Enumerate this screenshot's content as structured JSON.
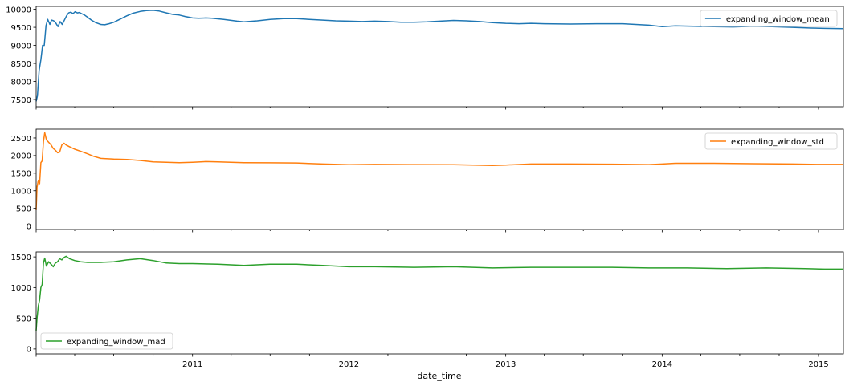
{
  "chart_data": [
    {
      "type": "line",
      "title": "",
      "xlabel": "",
      "ylabel": "",
      "ylim": [
        7300,
        10080
      ],
      "y_ticks": [
        7500,
        8000,
        8500,
        9000,
        9500,
        10000
      ],
      "legend_position": "upper-right",
      "grid": false,
      "series": [
        {
          "name": "expanding_window_mean",
          "color": "#1f77b4",
          "points": [
            [
              "2010-01-01",
              7450
            ],
            [
              "2010-01-04",
              7600
            ],
            [
              "2010-01-08",
              8300
            ],
            [
              "2010-01-12",
              8600
            ],
            [
              "2010-01-16",
              9000
            ],
            [
              "2010-01-20",
              9000
            ],
            [
              "2010-01-24",
              9550
            ],
            [
              "2010-01-28",
              9720
            ],
            [
              "2010-02-02",
              9580
            ],
            [
              "2010-02-06",
              9700
            ],
            [
              "2010-02-11",
              9680
            ],
            [
              "2010-02-16",
              9620
            ],
            [
              "2010-02-21",
              9520
            ],
            [
              "2010-02-26",
              9660
            ],
            [
              "2010-03-03",
              9580
            ],
            [
              "2010-03-08",
              9700
            ],
            [
              "2010-03-13",
              9820
            ],
            [
              "2010-03-18",
              9900
            ],
            [
              "2010-03-23",
              9920
            ],
            [
              "2010-03-28",
              9880
            ],
            [
              "2010-04-02",
              9930
            ],
            [
              "2010-04-07",
              9900
            ],
            [
              "2010-04-12",
              9910
            ],
            [
              "2010-04-17",
              9880
            ],
            [
              "2010-04-24",
              9840
            ],
            [
              "2010-05-01",
              9780
            ],
            [
              "2010-05-10",
              9700
            ],
            [
              "2010-05-20",
              9630
            ],
            [
              "2010-06-01",
              9580
            ],
            [
              "2010-06-10",
              9570
            ],
            [
              "2010-06-20",
              9600
            ],
            [
              "2010-07-01",
              9640
            ],
            [
              "2010-07-15",
              9720
            ],
            [
              "2010-08-01",
              9820
            ],
            [
              "2010-08-15",
              9890
            ],
            [
              "2010-09-01",
              9940
            ],
            [
              "2010-09-15",
              9965
            ],
            [
              "2010-10-01",
              9970
            ],
            [
              "2010-10-15",
              9950
            ],
            [
              "2010-11-01",
              9900
            ],
            [
              "2010-11-15",
              9860
            ],
            [
              "2010-12-01",
              9840
            ],
            [
              "2010-12-15",
              9800
            ],
            [
              "2011-01-01",
              9760
            ],
            [
              "2011-01-15",
              9750
            ],
            [
              "2011-02-01",
              9760
            ],
            [
              "2011-02-15",
              9750
            ],
            [
              "2011-03-15",
              9720
            ],
            [
              "2011-04-15",
              9670
            ],
            [
              "2011-05-01",
              9650
            ],
            [
              "2011-06-01",
              9680
            ],
            [
              "2011-07-01",
              9720
            ],
            [
              "2011-08-01",
              9740
            ],
            [
              "2011-09-01",
              9740
            ],
            [
              "2011-10-01",
              9720
            ],
            [
              "2011-11-01",
              9700
            ],
            [
              "2011-12-01",
              9680
            ],
            [
              "2012-01-01",
              9670
            ],
            [
              "2012-02-01",
              9660
            ],
            [
              "2012-03-01",
              9670
            ],
            [
              "2012-04-01",
              9660
            ],
            [
              "2012-05-01",
              9640
            ],
            [
              "2012-06-01",
              9640
            ],
            [
              "2012-07-01",
              9650
            ],
            [
              "2012-08-01",
              9670
            ],
            [
              "2012-09-01",
              9690
            ],
            [
              "2012-10-01",
              9680
            ],
            [
              "2012-11-01",
              9660
            ],
            [
              "2012-12-01",
              9630
            ],
            [
              "2013-01-01",
              9610
            ],
            [
              "2013-02-01",
              9600
            ],
            [
              "2013-03-01",
              9610
            ],
            [
              "2013-04-01",
              9600
            ],
            [
              "2013-06-01",
              9590
            ],
            [
              "2013-08-01",
              9600
            ],
            [
              "2013-10-01",
              9600
            ],
            [
              "2013-12-01",
              9560
            ],
            [
              "2014-01-01",
              9520
            ],
            [
              "2014-02-01",
              9540
            ],
            [
              "2014-03-15",
              9530
            ],
            [
              "2014-05-01",
              9520
            ],
            [
              "2014-06-15",
              9510
            ],
            [
              "2014-08-01",
              9530
            ],
            [
              "2014-09-15",
              9520
            ],
            [
              "2014-11-01",
              9500
            ],
            [
              "2014-12-15",
              9480
            ],
            [
              "2015-01-15",
              9470
            ],
            [
              "2015-02-28",
              9465
            ]
          ]
        }
      ]
    },
    {
      "type": "line",
      "title": "",
      "xlabel": "",
      "ylabel": "",
      "ylim": [
        -100,
        2750
      ],
      "y_ticks": [
        0,
        500,
        1000,
        1500,
        2000,
        2500
      ],
      "legend_position": "upper-right",
      "grid": false,
      "series": [
        {
          "name": "expanding_window_std",
          "color": "#ff7f0e",
          "points": [
            [
              "2010-01-01",
              450
            ],
            [
              "2010-01-03",
              1100
            ],
            [
              "2010-01-06",
              1300
            ],
            [
              "2010-01-09",
              1200
            ],
            [
              "2010-01-12",
              1800
            ],
            [
              "2010-01-15",
              1850
            ],
            [
              "2010-01-18",
              2400
            ],
            [
              "2010-01-21",
              2650
            ],
            [
              "2010-01-25",
              2450
            ],
            [
              "2010-01-30",
              2380
            ],
            [
              "2010-02-05",
              2300
            ],
            [
              "2010-02-10",
              2200
            ],
            [
              "2010-02-15",
              2150
            ],
            [
              "2010-02-20",
              2080
            ],
            [
              "2010-02-25",
              2100
            ],
            [
              "2010-03-02",
              2300
            ],
            [
              "2010-03-07",
              2350
            ],
            [
              "2010-03-12",
              2300
            ],
            [
              "2010-03-20",
              2250
            ],
            [
              "2010-04-01",
              2180
            ],
            [
              "2010-04-15",
              2120
            ],
            [
              "2010-05-01",
              2050
            ],
            [
              "2010-05-15",
              1980
            ],
            [
              "2010-06-01",
              1920
            ],
            [
              "2010-07-01",
              1900
            ],
            [
              "2010-08-01",
              1890
            ],
            [
              "2010-09-01",
              1860
            ],
            [
              "2010-10-01",
              1820
            ],
            [
              "2010-11-01",
              1810
            ],
            [
              "2010-12-01",
              1800
            ],
            [
              "2011-01-01",
              1810
            ],
            [
              "2011-02-01",
              1830
            ],
            [
              "2011-03-01",
              1820
            ],
            [
              "2011-05-01",
              1800
            ],
            [
              "2011-07-01",
              1795
            ],
            [
              "2011-09-01",
              1790
            ],
            [
              "2011-11-01",
              1760
            ],
            [
              "2012-01-01",
              1740
            ],
            [
              "2012-03-01",
              1750
            ],
            [
              "2012-06-01",
              1745
            ],
            [
              "2012-09-01",
              1740
            ],
            [
              "2012-12-01",
              1720
            ],
            [
              "2013-01-01",
              1730
            ],
            [
              "2013-03-01",
              1760
            ],
            [
              "2013-06-01",
              1760
            ],
            [
              "2013-09-01",
              1755
            ],
            [
              "2013-12-01",
              1745
            ],
            [
              "2014-01-01",
              1760
            ],
            [
              "2014-02-01",
              1780
            ],
            [
              "2014-05-01",
              1780
            ],
            [
              "2014-08-01",
              1770
            ],
            [
              "2014-11-01",
              1760
            ],
            [
              "2015-01-01",
              1750
            ],
            [
              "2015-02-28",
              1750
            ]
          ]
        }
      ]
    },
    {
      "type": "line",
      "title": "",
      "xlabel": "date_time",
      "ylabel": "",
      "ylim": [
        -80,
        1580
      ],
      "y_ticks": [
        0,
        500,
        1000,
        1500
      ],
      "x_ticks": [
        "2011",
        "2012",
        "2013",
        "2014",
        "2015"
      ],
      "legend_position": "lower-left",
      "grid": false,
      "series": [
        {
          "name": "expanding_window_mad",
          "color": "#2ca02c",
          "points": [
            [
              "2010-01-01",
              300
            ],
            [
              "2010-01-03",
              500
            ],
            [
              "2010-01-06",
              700
            ],
            [
              "2010-01-09",
              800
            ],
            [
              "2010-01-12",
              1000
            ],
            [
              "2010-01-15",
              1050
            ],
            [
              "2010-01-18",
              1400
            ],
            [
              "2010-01-21",
              1480
            ],
            [
              "2010-01-25",
              1350
            ],
            [
              "2010-01-30",
              1420
            ],
            [
              "2010-02-05",
              1380
            ],
            [
              "2010-02-10",
              1340
            ],
            [
              "2010-02-15",
              1400
            ],
            [
              "2010-02-20",
              1420
            ],
            [
              "2010-02-25",
              1470
            ],
            [
              "2010-03-02",
              1450
            ],
            [
              "2010-03-07",
              1490
            ],
            [
              "2010-03-12",
              1510
            ],
            [
              "2010-03-20",
              1470
            ],
            [
              "2010-04-01",
              1440
            ],
            [
              "2010-04-15",
              1420
            ],
            [
              "2010-05-01",
              1410
            ],
            [
              "2010-06-01",
              1410
            ],
            [
              "2010-07-01",
              1420
            ],
            [
              "2010-08-01",
              1450
            ],
            [
              "2010-09-01",
              1470
            ],
            [
              "2010-10-01",
              1440
            ],
            [
              "2010-11-01",
              1400
            ],
            [
              "2010-12-01",
              1390
            ],
            [
              "2011-01-01",
              1390
            ],
            [
              "2011-03-01",
              1380
            ],
            [
              "2011-05-01",
              1360
            ],
            [
              "2011-07-01",
              1380
            ],
            [
              "2011-09-01",
              1380
            ],
            [
              "2011-11-01",
              1360
            ],
            [
              "2012-01-01",
              1340
            ],
            [
              "2012-03-01",
              1340
            ],
            [
              "2012-06-01",
              1330
            ],
            [
              "2012-09-01",
              1340
            ],
            [
              "2012-12-01",
              1320
            ],
            [
              "2013-03-01",
              1330
            ],
            [
              "2013-06-01",
              1330
            ],
            [
              "2013-09-01",
              1330
            ],
            [
              "2013-12-01",
              1320
            ],
            [
              "2014-03-01",
              1320
            ],
            [
              "2014-06-01",
              1310
            ],
            [
              "2014-09-01",
              1320
            ],
            [
              "2014-12-01",
              1310
            ],
            [
              "2015-01-15",
              1300
            ],
            [
              "2015-02-28",
              1300
            ]
          ]
        }
      ]
    }
  ]
}
